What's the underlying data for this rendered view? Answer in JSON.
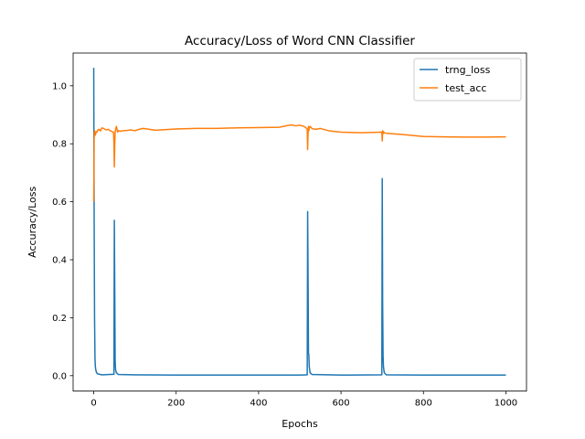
{
  "chart_data": {
    "type": "line",
    "title": "Accuracy/Loss of Word CNN Classifier",
    "xlabel": "Epochs",
    "ylabel": "Accuracy/Loss",
    "xlim": [
      -50,
      1050
    ],
    "ylim": [
      -0.053,
      1.113
    ],
    "xticks": [
      0,
      200,
      400,
      600,
      800,
      1000
    ],
    "yticks": [
      0.0,
      0.2,
      0.4,
      0.6,
      0.8,
      1.0
    ],
    "grid": false,
    "legend_position": "top-right",
    "series": [
      {
        "name": "trng_loss",
        "color": "#1f77b4",
        "x": [
          0,
          1,
          2,
          3,
          4,
          5,
          7,
          10,
          20,
          49,
          50,
          51,
          52,
          53,
          55,
          60,
          100,
          200,
          300,
          400,
          500,
          518,
          519,
          520,
          521,
          522,
          523,
          525,
          530,
          600,
          699,
          700,
          701,
          702,
          703,
          705,
          710,
          800,
          900,
          1000
        ],
        "y": [
          1.062,
          0.55,
          0.2,
          0.06,
          0.03,
          0.02,
          0.01,
          0.006,
          0.003,
          0.005,
          0.536,
          0.3,
          0.05,
          0.02,
          0.01,
          0.004,
          0.003,
          0.002,
          0.002,
          0.002,
          0.002,
          0.003,
          0.566,
          0.35,
          0.08,
          0.07,
          0.03,
          0.01,
          0.004,
          0.002,
          0.003,
          0.68,
          0.25,
          0.07,
          0.03,
          0.01,
          0.003,
          0.002,
          0.002,
          0.002
        ]
      },
      {
        "name": "test_acc",
        "color": "#ff7f0e",
        "x": [
          0,
          1,
          2,
          4,
          6,
          8,
          10,
          13,
          16,
          20,
          25,
          30,
          35,
          40,
          45,
          48,
          49,
          50,
          51,
          52,
          53,
          55,
          58,
          60,
          65,
          70,
          80,
          90,
          100,
          110,
          120,
          150,
          200,
          250,
          300,
          350,
          400,
          450,
          470,
          480,
          490,
          500,
          510,
          515,
          518,
          519,
          520,
          521,
          522,
          523,
          525,
          530,
          540,
          550,
          570,
          600,
          650,
          699,
          700,
          701,
          702,
          703,
          705,
          710,
          750,
          800,
          850,
          900,
          950,
          1000
        ],
        "y": [
          0.6,
          0.82,
          0.845,
          0.83,
          0.842,
          0.84,
          0.848,
          0.85,
          0.844,
          0.855,
          0.852,
          0.848,
          0.85,
          0.845,
          0.842,
          0.84,
          0.8,
          0.72,
          0.8,
          0.84,
          0.85,
          0.86,
          0.84,
          0.846,
          0.843,
          0.845,
          0.846,
          0.848,
          0.845,
          0.85,
          0.853,
          0.847,
          0.851,
          0.853,
          0.853,
          0.855,
          0.856,
          0.857,
          0.863,
          0.865,
          0.862,
          0.864,
          0.86,
          0.855,
          0.85,
          0.78,
          0.835,
          0.86,
          0.845,
          0.855,
          0.86,
          0.852,
          0.85,
          0.853,
          0.845,
          0.84,
          0.838,
          0.84,
          0.81,
          0.845,
          0.835,
          0.842,
          0.838,
          0.836,
          0.832,
          0.825,
          0.824,
          0.823,
          0.823,
          0.824
        ]
      }
    ]
  }
}
